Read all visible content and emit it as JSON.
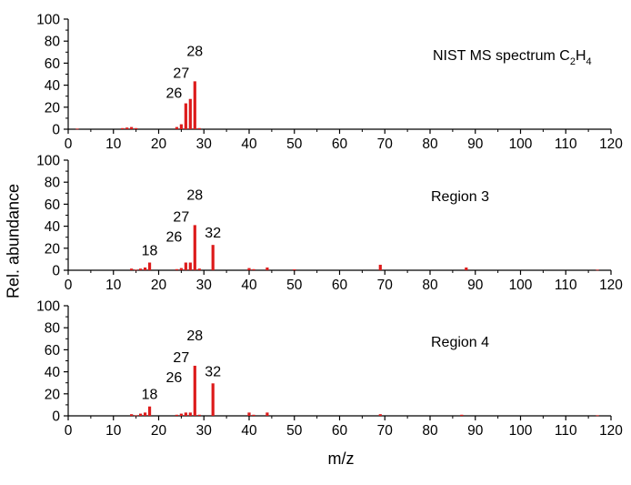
{
  "chart_data": {
    "type": "bar",
    "xlabel": "m/z",
    "ylabel": "Rel. abundance",
    "xlim": [
      0,
      120
    ],
    "ylim": [
      0,
      100
    ],
    "x_ticks": [
      0,
      10,
      20,
      30,
      40,
      50,
      60,
      70,
      80,
      90,
      100,
      110,
      120
    ],
    "y_ticks": [
      0,
      20,
      40,
      60,
      80,
      100
    ],
    "bar_color": "#dd1c1c",
    "panels": [
      {
        "title": "NIST MS spectrum C",
        "title_sub1": "2",
        "title_mid": "H",
        "title_sub2": "4",
        "x": [
          2,
          12,
          13,
          14,
          15,
          24,
          25,
          26,
          27,
          28,
          29
        ],
        "values": [
          0.5,
          1.0,
          1.5,
          2.0,
          1.0,
          2.0,
          4.5,
          23.5,
          27.5,
          43.5,
          1.0
        ],
        "peak_labels": [
          {
            "x": 26,
            "label": "26"
          },
          {
            "x": 27,
            "label": "27"
          },
          {
            "x": 28,
            "label": "28"
          }
        ]
      },
      {
        "title": "Region 3",
        "x": [
          14,
          15,
          16,
          17,
          18,
          24,
          25,
          26,
          27,
          28,
          29,
          32,
          40,
          41,
          44,
          50,
          69,
          88,
          117
        ],
        "values": [
          1.5,
          0.5,
          1.5,
          2.5,
          7.0,
          1.0,
          2.0,
          7.0,
          7.0,
          41.0,
          1.5,
          23.0,
          2.0,
          1.0,
          2.5,
          0.8,
          5.0,
          2.5,
          0.5
        ],
        "peak_labels": [
          {
            "x": 18,
            "label": "18"
          },
          {
            "x": 26,
            "label": "26"
          },
          {
            "x": 27,
            "label": "27"
          },
          {
            "x": 28,
            "label": "28"
          },
          {
            "x": 32,
            "label": "32"
          }
        ]
      },
      {
        "title": "Region 4",
        "x": [
          14,
          15,
          16,
          17,
          18,
          24,
          25,
          26,
          27,
          28,
          29,
          32,
          40,
          41,
          44,
          69,
          87,
          117
        ],
        "values": [
          1.5,
          0.5,
          2.0,
          3.0,
          8.5,
          1.0,
          2.0,
          3.0,
          3.0,
          45.5,
          1.0,
          29.5,
          3.0,
          1.0,
          3.0,
          1.5,
          1.0,
          0.5
        ],
        "peak_labels": [
          {
            "x": 18,
            "label": "18"
          },
          {
            "x": 26,
            "label": "26"
          },
          {
            "x": 27,
            "label": "27"
          },
          {
            "x": 28,
            "label": "28"
          },
          {
            "x": 32,
            "label": "32"
          }
        ]
      }
    ]
  }
}
